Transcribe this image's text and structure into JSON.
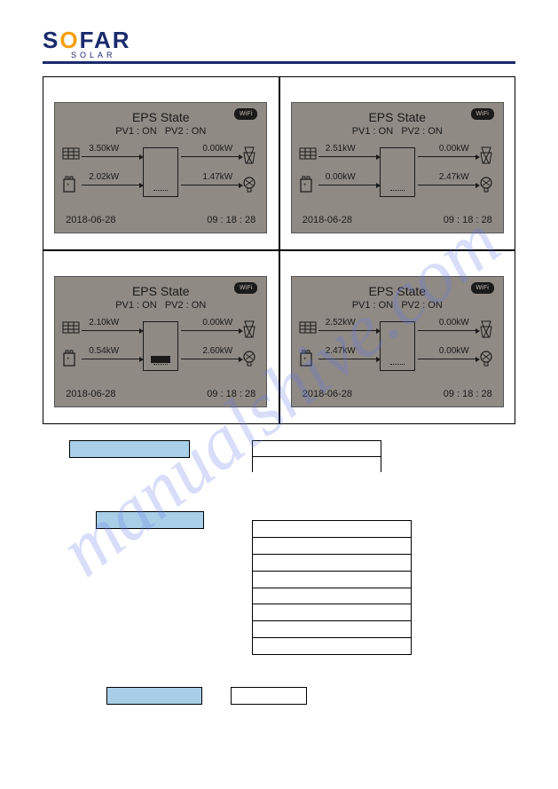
{
  "logo": {
    "text": "SOFAR",
    "sub": "SOLAR"
  },
  "watermark": "manualshive.com",
  "panels": [
    {
      "title": "EPS State",
      "wifi": "WiFi",
      "pv1": "PV1 : ON",
      "pv2": "PV2 : ON",
      "solar": "3.50kW",
      "grid": "0.00kW",
      "battery": "2.02kW",
      "load": "1.47kW",
      "date": "2018-06-28",
      "time": "09 : 18 : 28",
      "show_inv_bar": false
    },
    {
      "title": "EPS State",
      "wifi": "WiFi",
      "pv1": "PV1 : ON",
      "pv2": "PV2 : ON",
      "solar": "2.51kW",
      "grid": "0.00kW",
      "battery": "0.00kW",
      "load": "2.47kW",
      "date": "2018-06-28",
      "time": "09 : 18 : 28",
      "show_inv_bar": false
    },
    {
      "title": "EPS State",
      "wifi": "WiFi",
      "pv1": "PV1 : ON",
      "pv2": "PV2 : ON",
      "solar": "2.10kW",
      "grid": "0.00kW",
      "battery": "0.54kW",
      "load": "2.60kW",
      "date": "2018-06-28",
      "time": "09 : 18 : 28",
      "show_inv_bar": true
    },
    {
      "title": "EPS State",
      "wifi": "WiFi",
      "pv1": "PV1 : ON",
      "pv2": "PV2 : ON",
      "solar": "2.52kW",
      "grid": "0.00kW",
      "battery": "2.47kW",
      "load": "0.00kW",
      "date": "2018-06-28",
      "time": "09 : 18 : 28",
      "show_inv_bar": false
    }
  ],
  "colors": {
    "lcd_bg": "#8f8a84",
    "lcd_fg": "#1a1a1a",
    "blue_box": "#a9cfe8",
    "logo_navy": "#1a2a6c",
    "logo_orange": "#f59e0b"
  }
}
